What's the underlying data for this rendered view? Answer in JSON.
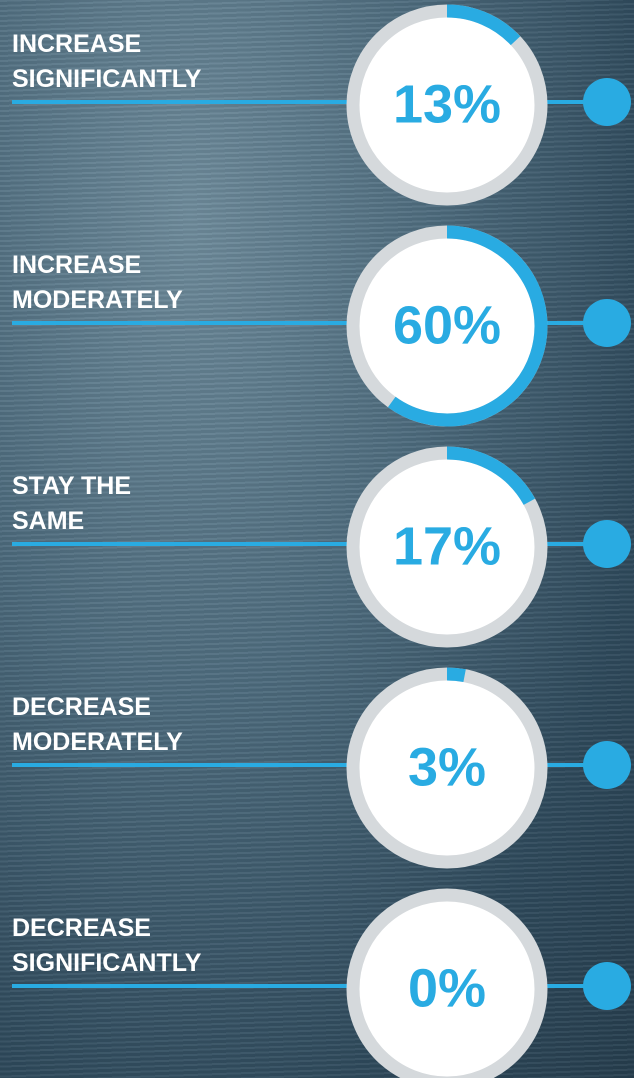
{
  "chart_data": {
    "type": "gauge",
    "categories": [
      "INCREASE SIGNIFICANTLY",
      "INCREASE MODERATELY",
      "STAY THE SAME",
      "DECREASE MODERATELY",
      "DECREASE SIGNIFICANTLY"
    ],
    "values": [
      13,
      60,
      17,
      3,
      0
    ],
    "value_labels": [
      "13%",
      "60%",
      "17%",
      "3%",
      "0%"
    ],
    "color": "#29abe2",
    "track_color": "#d5d9dc"
  }
}
